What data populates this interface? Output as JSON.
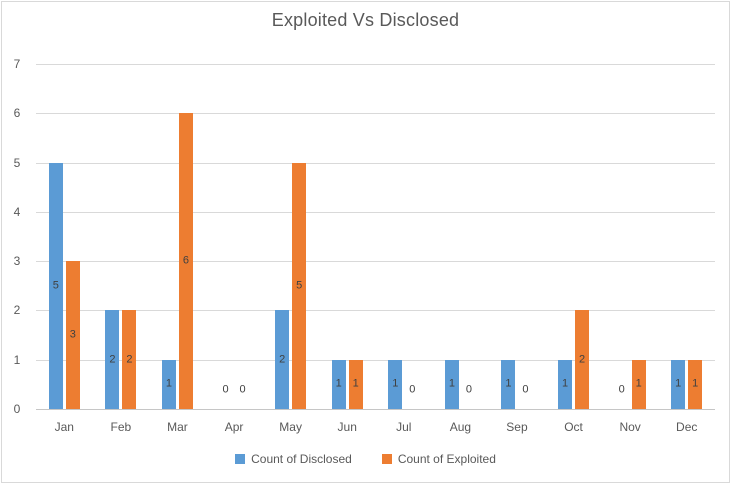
{
  "chart_data": {
    "type": "bar",
    "title": "Exploited Vs Disclosed",
    "categories": [
      "Jan",
      "Feb",
      "Mar",
      "Apr",
      "May",
      "Jun",
      "Jul",
      "Aug",
      "Sep",
      "Oct",
      "Nov",
      "Dec"
    ],
    "series": [
      {
        "name": "Count of Disclosed",
        "slug": "disclosed",
        "color": "#5B9BD5",
        "values": [
          5,
          2,
          1,
          0,
          2,
          1,
          1,
          1,
          1,
          1,
          0,
          1
        ]
      },
      {
        "name": "Count of Exploited",
        "slug": "exploited",
        "color": "#ED7D31",
        "values": [
          3,
          2,
          6,
          0,
          5,
          1,
          0,
          0,
          0,
          2,
          1,
          1
        ]
      }
    ],
    "ylim": [
      0,
      7
    ],
    "ytick_step": 1,
    "yticks": [
      0,
      1,
      2,
      3,
      4,
      5,
      6,
      7
    ],
    "grid": true,
    "data_labels": "center",
    "legend_position": "bottom"
  },
  "colors": {
    "series_disclosed": "#5B9BD5",
    "series_exploited": "#ED7D31",
    "gridline": "#D9D9D9",
    "axis_line": "#C6C6C6",
    "axis_text": "#595959",
    "title_text": "#595959",
    "data_label_text": "#404040",
    "chart_border": "#D9D9D9",
    "background": "#FFFFFF"
  }
}
